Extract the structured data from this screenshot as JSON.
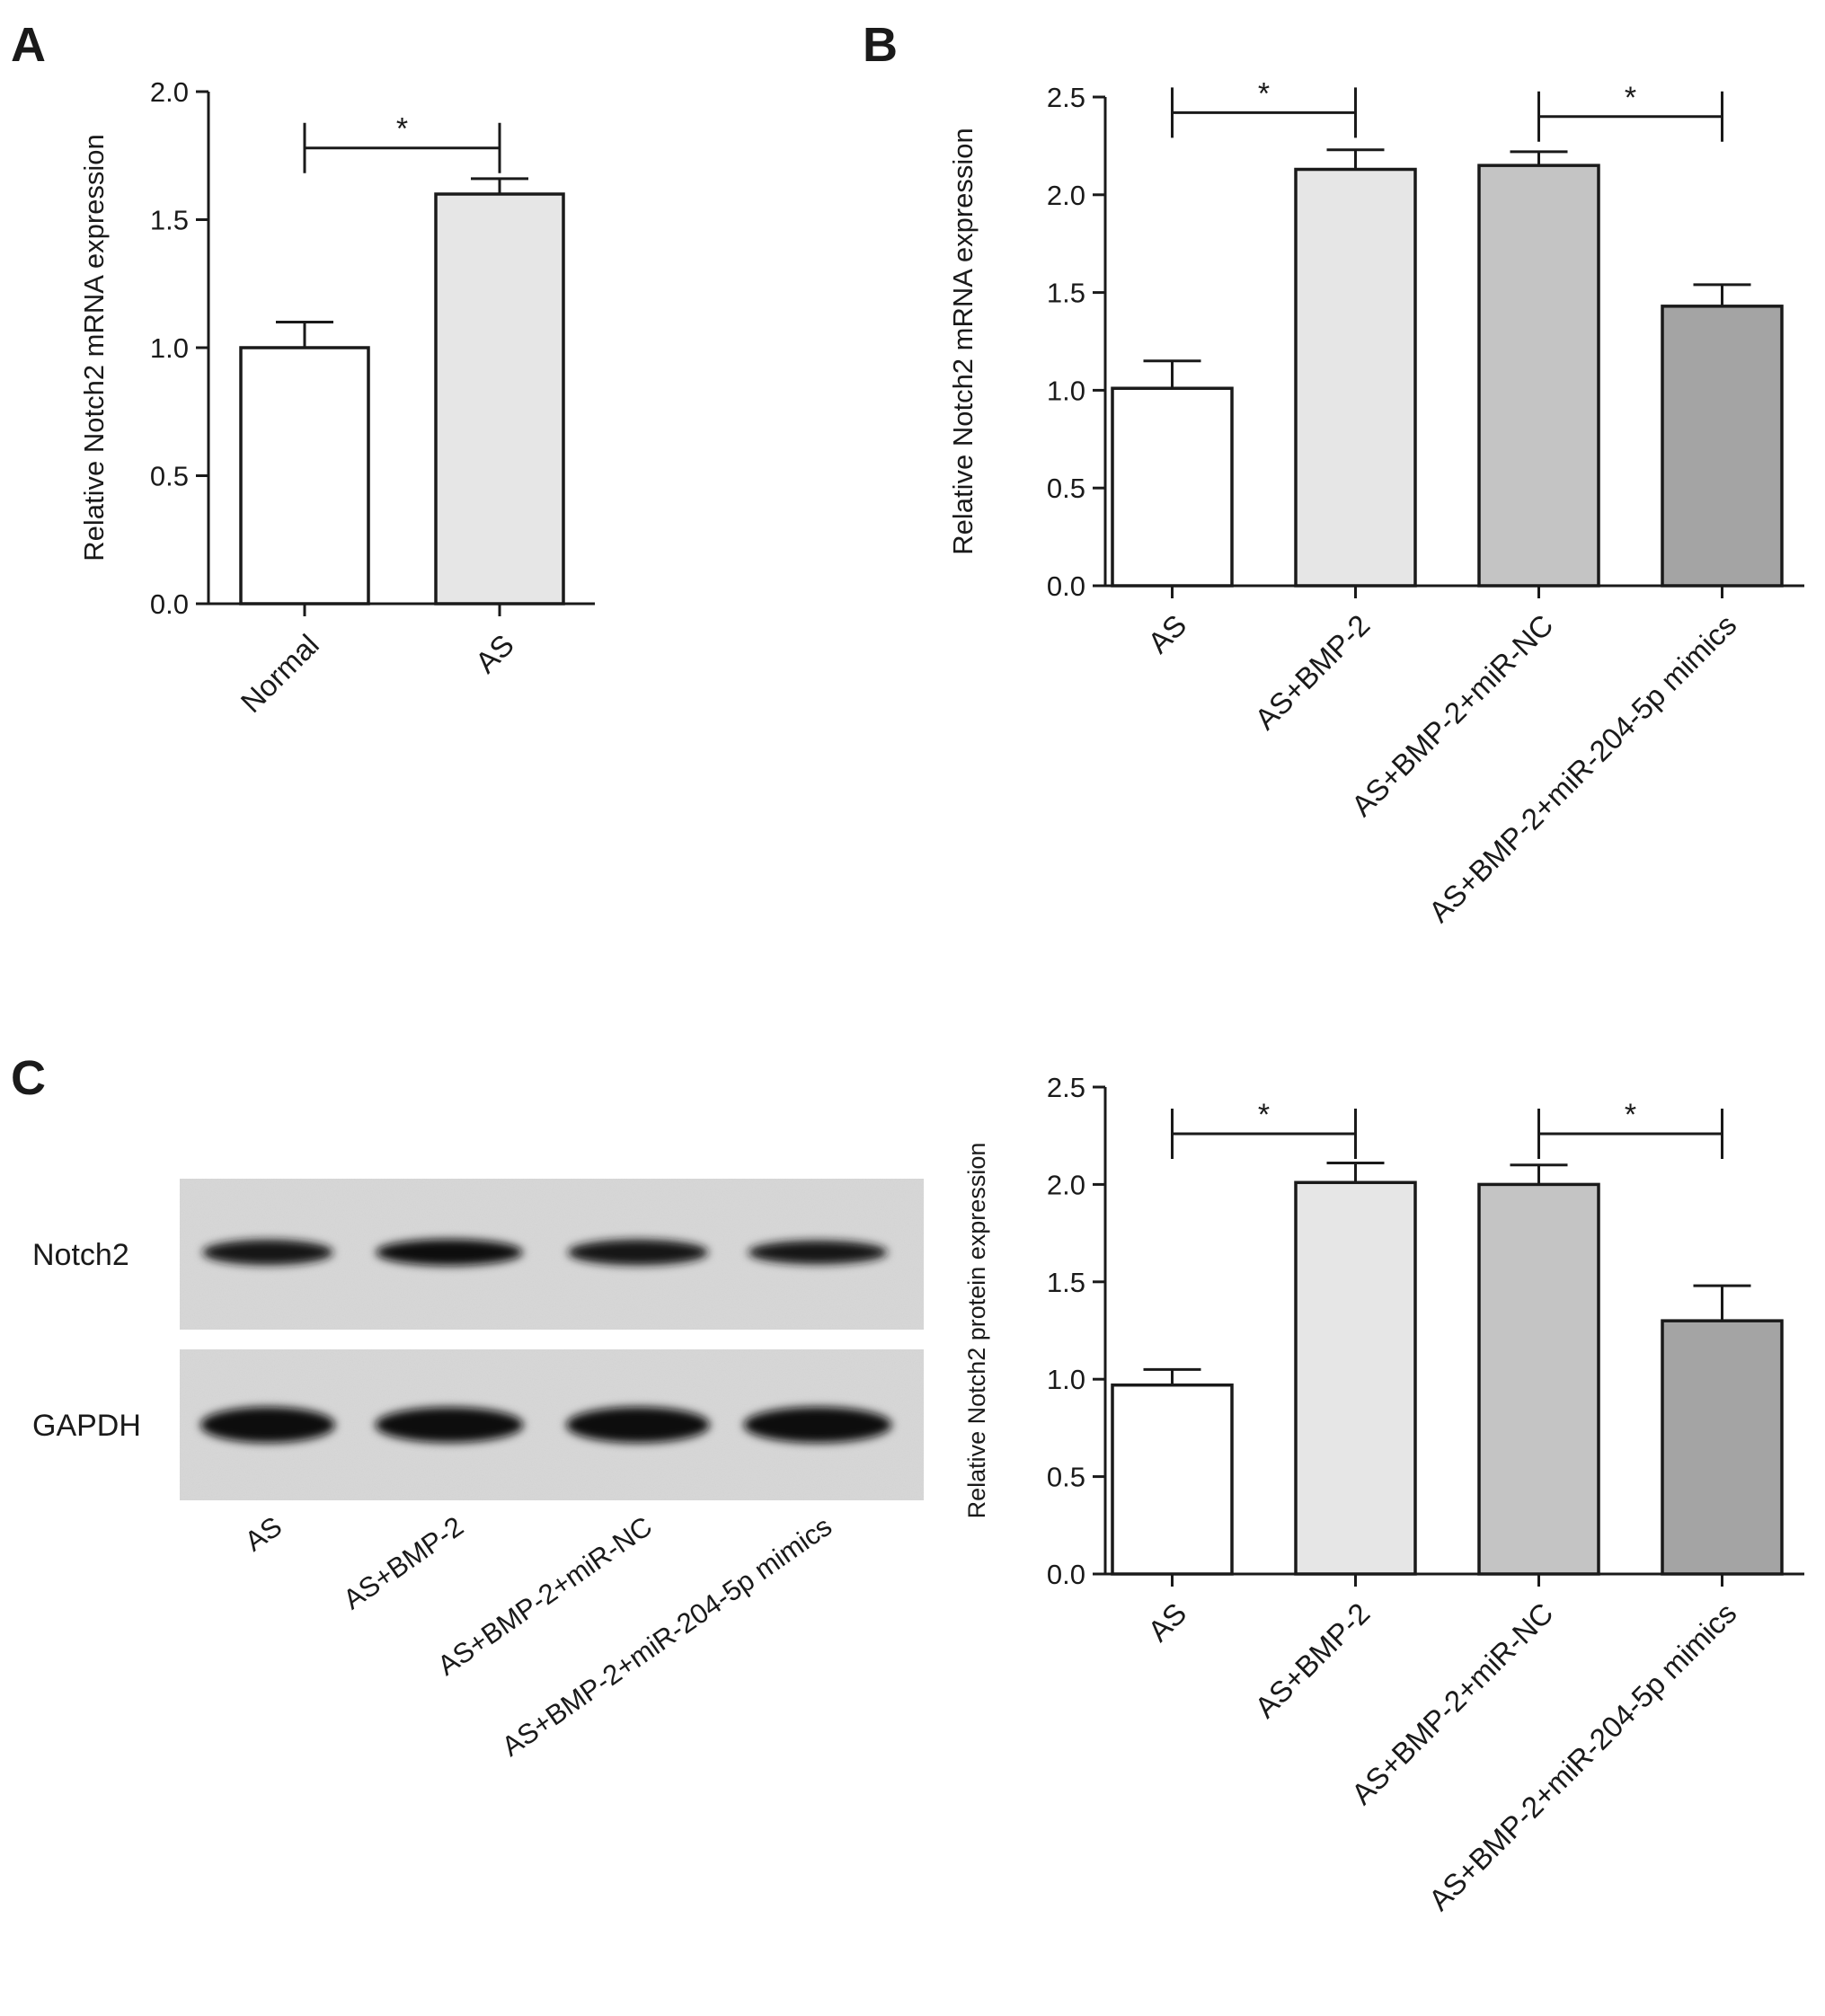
{
  "chart_data": [
    {
      "panel": "A",
      "type": "bar",
      "ylabel": "Relative Notch2 mRNA expression",
      "ylim": [
        0,
        2.0
      ],
      "yticks": [
        "0.0",
        "0.5",
        "1.0",
        "1.5",
        "2.0"
      ],
      "categories": [
        "Normal",
        "AS"
      ],
      "values": [
        1.0,
        1.6
      ],
      "errors": [
        0.1,
        0.06
      ],
      "bar_colors": [
        "#ffffff",
        "#e6e6e6"
      ],
      "significance": [
        {
          "from": 0,
          "to": 1,
          "label": "*",
          "y": 1.78
        }
      ]
    },
    {
      "panel": "B",
      "type": "bar",
      "ylabel": "Relative Notch2 mRNA expression",
      "ylim": [
        0,
        2.5
      ],
      "yticks": [
        "0.0",
        "0.5",
        "1.0",
        "1.5",
        "2.0",
        "2.5"
      ],
      "categories": [
        "AS",
        "AS+BMP-2",
        "AS+BMP-2+miR-NC",
        "AS+BMP-2+miR-204-5p mimics"
      ],
      "values": [
        1.01,
        2.13,
        2.15,
        1.43
      ],
      "errors": [
        0.14,
        0.1,
        0.07,
        0.11
      ],
      "bar_colors": [
        "#ffffff",
        "#e6e6e6",
        "#c4c4c4",
        "#a4a4a4"
      ],
      "significance": [
        {
          "from": 0,
          "to": 1,
          "label": "*",
          "y": 2.42
        },
        {
          "from": 2,
          "to": 3,
          "label": "*",
          "y": 2.4
        }
      ]
    },
    {
      "panel": "C",
      "type": "bar",
      "ylabel": "Relative Notch2 protein expression",
      "ylim": [
        0,
        2.5
      ],
      "yticks": [
        "0.0",
        "0.5",
        "1.0",
        "1.5",
        "2.0",
        "2.5"
      ],
      "categories": [
        "AS",
        "AS+BMP-2",
        "AS+BMP-2+miR-NC",
        "AS+BMP-2+miR-204-5p mimics"
      ],
      "values": [
        0.97,
        2.01,
        2.0,
        1.3
      ],
      "errors": [
        0.08,
        0.1,
        0.1,
        0.18
      ],
      "bar_colors": [
        "#ffffff",
        "#e6e6e6",
        "#c4c4c4",
        "#a4a4a4"
      ],
      "significance": [
        {
          "from": 0,
          "to": 1,
          "label": "*",
          "y": 2.26
        },
        {
          "from": 2,
          "to": 3,
          "label": "*",
          "y": 2.26
        }
      ]
    }
  ],
  "panel_labels": {
    "A": "A",
    "B": "B",
    "C": "C"
  },
  "western_blot": {
    "rows": [
      {
        "name": "Notch2",
        "band_intensity": [
          0.8,
          0.95,
          0.85,
          0.6
        ]
      },
      {
        "name": "GAPDH",
        "band_intensity": [
          1.0,
          0.95,
          1.0,
          1.0
        ]
      }
    ],
    "lanes": [
      "AS",
      "AS+BMP-2",
      "AS+BMP-2+miR-NC",
      "AS+BMP-2+miR-204-5p mimics"
    ]
  }
}
